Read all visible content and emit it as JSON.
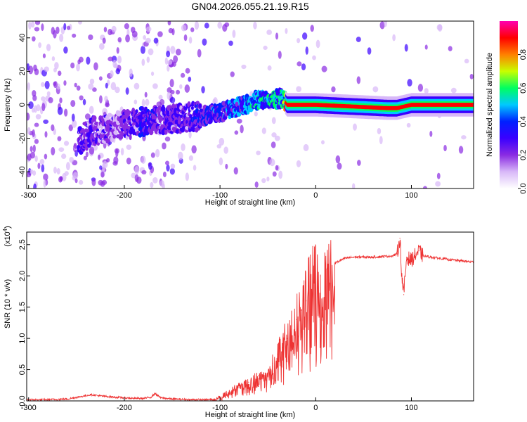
{
  "chart_data": [
    {
      "type": "heatmap",
      "title": "GN04.2026.055.21.19.R15",
      "xlabel": "Height of straight line (km)",
      "ylabel": "Frequency (Hz)",
      "xlim": [
        -302,
        165
      ],
      "ylim": [
        -50,
        50
      ],
      "xticks": [
        -300,
        -200,
        -100,
        0,
        100
      ],
      "yticks": [
        -40,
        -20,
        0,
        20,
        40
      ],
      "colorbar": {
        "label": "Normalized spectral amplitude",
        "range": [
          0,
          1
        ],
        "ticks": [
          "0.0",
          "0.2",
          "0.4",
          "0.6",
          "0.8"
        ],
        "colormap": [
          "#ffffff",
          "#d8b8f8",
          "#8a2be2",
          "#3a00ff",
          "#0020ff",
          "#00c8ff",
          "#00ff60",
          "#c8ff00",
          "#ff8000",
          "#ff0000",
          "#ff00b0"
        ]
      },
      "signal_track": [
        {
          "h": -248,
          "f": -22,
          "amp": 0.25
        },
        {
          "h": -235,
          "f": -16,
          "amp": 0.25
        },
        {
          "h": -210,
          "f": -13,
          "amp": 0.2
        },
        {
          "h": -180,
          "f": -10,
          "amp": 0.3
        },
        {
          "h": -140,
          "f": -8,
          "amp": 0.25
        },
        {
          "h": -110,
          "f": -6,
          "amp": 0.35
        },
        {
          "h": -85,
          "f": -2,
          "amp": 0.4
        },
        {
          "h": -60,
          "f": 3,
          "amp": 0.5
        },
        {
          "h": -35,
          "f": 4,
          "amp": 0.5
        },
        {
          "h": -30,
          "f": 0,
          "amp": 0.8
        },
        {
          "h": 0,
          "f": 0,
          "amp": 0.9
        },
        {
          "h": 75,
          "f": -2,
          "amp": 0.6
        },
        {
          "h": 85,
          "f": -2,
          "amp": 0.5
        },
        {
          "h": 100,
          "f": 0,
          "amp": 0.9
        },
        {
          "h": 165,
          "f": 0,
          "amp": 0.9
        }
      ]
    },
    {
      "type": "line",
      "xlabel": "Height of straight line (km)",
      "ylabel": "SNR (10 * v/v)",
      "scale_label": "(x10",
      "scale_exp": "4",
      "xlim": [
        -302,
        165
      ],
      "ylim": [
        0,
        2.7
      ],
      "xticks": [
        -300,
        -200,
        -100,
        0,
        100
      ],
      "yticks": [
        "0.0",
        "0.5",
        "1.0",
        "1.5",
        "2.0",
        "2.5"
      ],
      "color": "#ee3333",
      "series": [
        {
          "name": "SNR",
          "x": [
            -302,
            -280,
            -260,
            -245,
            -235,
            -225,
            -210,
            -200,
            -190,
            -180,
            -172,
            -168,
            -162,
            -150,
            -130,
            -110,
            -100,
            -90,
            -80,
            -70,
            -60,
            -50,
            -45,
            -40,
            -35,
            -30,
            -25,
            -20,
            -15,
            -10,
            -5,
            0,
            5,
            10,
            20,
            30,
            40,
            50,
            60,
            70,
            80,
            85,
            88,
            90,
            92,
            95,
            100,
            105,
            108,
            112,
            120,
            140,
            165
          ],
          "y": [
            0.02,
            0.02,
            0.03,
            0.07,
            0.1,
            0.08,
            0.06,
            0.05,
            0.04,
            0.04,
            0.06,
            0.12,
            0.05,
            0.03,
            0.02,
            0.02,
            0.05,
            0.15,
            0.25,
            0.3,
            0.4,
            0.45,
            0.6,
            0.75,
            0.85,
            1.0,
            1.2,
            1.3,
            1.45,
            1.6,
            1.8,
            1.9,
            2.0,
            2.15,
            2.2,
            2.28,
            2.3,
            2.3,
            2.3,
            2.31,
            2.32,
            2.35,
            2.6,
            2.0,
            1.7,
            2.3,
            2.25,
            2.35,
            2.4,
            2.32,
            2.3,
            2.26,
            2.22
          ]
        }
      ]
    }
  ]
}
